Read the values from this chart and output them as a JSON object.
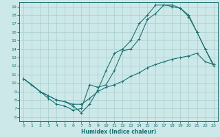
{
  "xlabel": "Humidex (Indice chaleur)",
  "bg_color": "#cce8e8",
  "line_color": "#1a7070",
  "grid_color": "#aacece",
  "xlim": [
    -0.5,
    23.5
  ],
  "ylim": [
    5.5,
    19.5
  ],
  "xticks": [
    0,
    1,
    2,
    3,
    4,
    5,
    6,
    7,
    8,
    9,
    10,
    11,
    12,
    13,
    14,
    15,
    16,
    17,
    18,
    19,
    20,
    21,
    22,
    23
  ],
  "yticks": [
    6,
    7,
    8,
    9,
    10,
    11,
    12,
    13,
    14,
    15,
    16,
    17,
    18,
    19
  ],
  "line1_x": [
    0,
    1,
    2,
    3,
    4,
    5,
    6,
    7,
    8,
    9,
    10,
    11,
    12,
    13,
    14,
    15,
    16,
    17,
    18,
    19,
    20,
    21,
    22,
    23
  ],
  "line1_y": [
    10.5,
    9.8,
    9.0,
    8.2,
    7.5,
    7.3,
    6.8,
    7.0,
    9.8,
    9.5,
    9.8,
    11.5,
    13.8,
    14.0,
    15.2,
    17.5,
    18.2,
    19.2,
    19.2,
    18.8,
    18.0,
    16.0,
    14.0,
    12.2
  ],
  "line2_x": [
    0,
    2,
    3,
    4,
    5,
    6,
    7,
    8,
    9,
    10,
    11,
    12,
    13,
    14,
    15,
    16,
    17,
    18,
    19,
    20,
    21,
    22,
    23
  ],
  "line2_y": [
    10.5,
    9.0,
    8.5,
    8.0,
    7.8,
    7.3,
    6.5,
    7.5,
    9.2,
    11.5,
    13.5,
    14.0,
    15.0,
    17.0,
    18.0,
    19.2,
    19.2,
    19.0,
    18.8,
    17.8,
    16.0,
    14.0,
    12.0
  ],
  "line3_x": [
    0,
    2,
    3,
    4,
    5,
    6,
    7,
    8,
    9,
    10,
    11,
    12,
    13,
    14,
    15,
    16,
    17,
    18,
    19,
    20,
    21,
    22,
    23
  ],
  "line3_y": [
    10.5,
    9.0,
    8.5,
    8.0,
    7.8,
    7.5,
    7.5,
    8.2,
    9.0,
    9.5,
    9.8,
    10.2,
    10.8,
    11.2,
    11.8,
    12.2,
    12.5,
    12.8,
    13.0,
    13.2,
    13.5,
    12.5,
    12.2
  ]
}
